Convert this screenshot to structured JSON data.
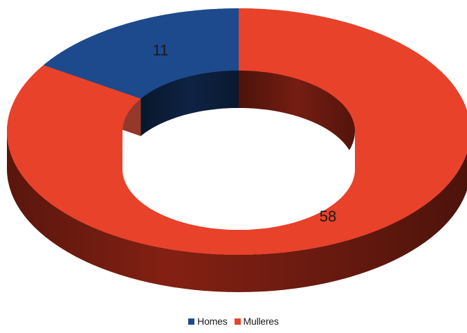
{
  "chart_data": {
    "type": "pie",
    "variant": "donut-3d",
    "categories": [
      "Homes",
      "Mulleres"
    ],
    "values": [
      11,
      58
    ],
    "colors": [
      "#1d4a8c",
      "#e8422a"
    ],
    "side_colors": [
      "#10294f",
      "#8a2214"
    ],
    "data_labels": [
      "11",
      "58"
    ],
    "legend": {
      "placement": "bottom",
      "entries": [
        "Homes",
        "Mulleres"
      ]
    },
    "title": ""
  }
}
